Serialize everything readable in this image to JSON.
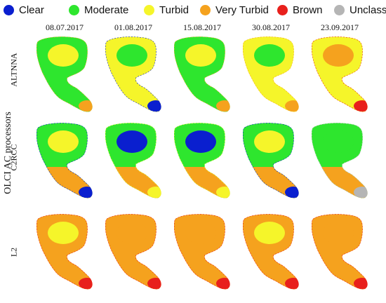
{
  "legend": [
    {
      "label": "Clear",
      "color": "#0a1fcf"
    },
    {
      "label": "Moderate",
      "color": "#2ee62e"
    },
    {
      "label": "Turbid",
      "color": "#f5f52a"
    },
    {
      "label": "Very Turbid",
      "color": "#f5a21e"
    },
    {
      "label": "Brown",
      "color": "#e8201c"
    },
    {
      "label": "Unclassified",
      "color": "#b5b5b5"
    }
  ],
  "dates": [
    "08.07.2017",
    "01.08.2017",
    "15.08.2017",
    "30.08.2017",
    "23.09.2017"
  ],
  "y_title": "OLCI AC processors",
  "rows": [
    "ALTNNA",
    "C2RCC",
    "L2"
  ],
  "panels": [
    [
      {
        "main": "green",
        "second": "yellow",
        "accent": "orange"
      },
      {
        "main": "yellow",
        "second": "green",
        "accent": "blue"
      },
      {
        "main": "green",
        "second": "yellow",
        "accent": "orange"
      },
      {
        "main": "yellow",
        "second": "green",
        "accent": "orange"
      },
      {
        "main": "yellow",
        "second": "orange",
        "accent": "red"
      }
    ],
    [
      {
        "main": "green",
        "second": "yellow",
        "accent": "blue"
      },
      {
        "main": "green",
        "second": "blue",
        "accent": "yellow"
      },
      {
        "main": "green",
        "second": "blue",
        "accent": "yellow"
      },
      {
        "main": "green",
        "second": "yellow",
        "accent": "blue"
      },
      {
        "main": "green",
        "second": "green",
        "accent": "gray"
      }
    ],
    [
      {
        "main": "orange",
        "second": "yellow",
        "accent": "red"
      },
      {
        "main": "orange",
        "second": "orange",
        "accent": "red"
      },
      {
        "main": "orange",
        "second": "orange",
        "accent": "red"
      },
      {
        "main": "orange",
        "second": "yellow",
        "accent": "red"
      },
      {
        "main": "orange",
        "second": "orange",
        "accent": "red"
      }
    ]
  ]
}
